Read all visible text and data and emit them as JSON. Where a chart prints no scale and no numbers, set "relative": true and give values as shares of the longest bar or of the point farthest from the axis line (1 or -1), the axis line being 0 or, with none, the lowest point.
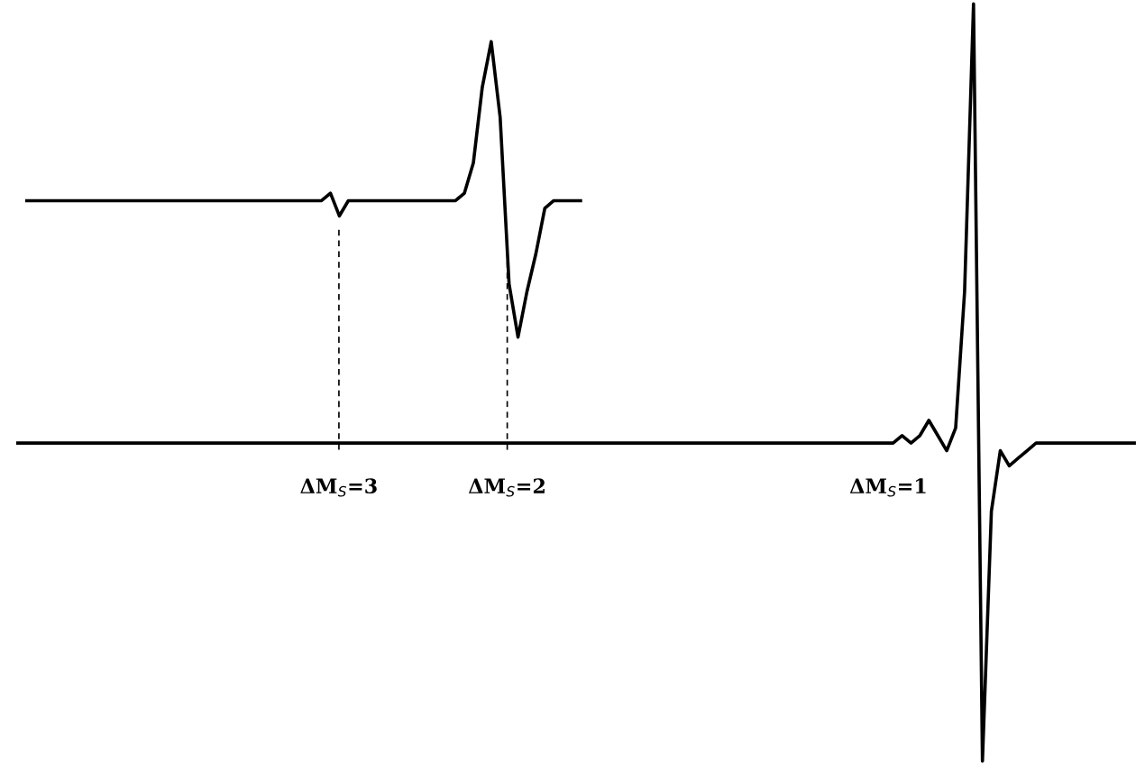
{
  "chart_data": {
    "type": "line",
    "relative": true,
    "line_style": "solid",
    "marker": "none",
    "legend": false,
    "categories": [
      null,
      null,
      null,
      null,
      null,
      null,
      null,
      null,
      null,
      null,
      null,
      null,
      null,
      null,
      null,
      null,
      null,
      null,
      null,
      null,
      null,
      null,
      null,
      null,
      null,
      null,
      null,
      null,
      null,
      null,
      null,
      null,
      null,
      null,
      null,
      null,
      null,
      null,
      null,
      null,
      null,
      null,
      null,
      null,
      null,
      null,
      null,
      null,
      null,
      null,
      null,
      null,
      null,
      null,
      null,
      null,
      null,
      null,
      null,
      null,
      null,
      null,
      null,
      null,
      null,
      null,
      null,
      null,
      null,
      null,
      null,
      null,
      null,
      null,
      null,
      null,
      null,
      null,
      null,
      null,
      null,
      null,
      null,
      null,
      null,
      null,
      null,
      null,
      null,
      null,
      null,
      null,
      null,
      null,
      null,
      null,
      null,
      null,
      null,
      null,
      null,
      null,
      null,
      null,
      null,
      null,
      null,
      null,
      null,
      null,
      null,
      null,
      null,
      null,
      null,
      null,
      null,
      null,
      null,
      null,
      null,
      null,
      null,
      null,
      null,
      null
    ],
    "series": [
      {
        "color": "#000000",
        "values": [
          null,
          0.74,
          0.74,
          0.74,
          0.74,
          0.74,
          0.74,
          0.74,
          0.74,
          0.74,
          0.74,
          0.74,
          0.74,
          0.74,
          0.74,
          0.74,
          0.74,
          0.74,
          0.74,
          0.74,
          0.74,
          0.74,
          0.74,
          0.74,
          0.74,
          0.74,
          0.74,
          0.74,
          0.74,
          0.74,
          0.74,
          0.74,
          0.74,
          0.74,
          0.74,
          0.75,
          0.72,
          0.74,
          0.74,
          0.74,
          0.74,
          0.74,
          0.74,
          0.74,
          0.74,
          0.74,
          0.74,
          0.74,
          0.74,
          0.74,
          0.75,
          0.79,
          0.89,
          0.95,
          0.85,
          0.63,
          0.56,
          0.62,
          0.67,
          0.73,
          0.74,
          0.74,
          0.74,
          0.74,
          null,
          null,
          null,
          null,
          null,
          null,
          null,
          null,
          null,
          null,
          null,
          null,
          null,
          null,
          null,
          null,
          null,
          null,
          null,
          null,
          null,
          null,
          null,
          null,
          null,
          null,
          null,
          null,
          null,
          null,
          null,
          null,
          null,
          null,
          null,
          null,
          null,
          null,
          null,
          null,
          null,
          null,
          null,
          null,
          null,
          null,
          null,
          null,
          null,
          null,
          null,
          null,
          null,
          null,
          null,
          null,
          null,
          null,
          null,
          null,
          null,
          null
        ]
      },
      {
        "color": "#000000",
        "values": [
          0.42,
          0.42,
          0.42,
          0.42,
          0.42,
          0.42,
          0.42,
          0.42,
          0.42,
          0.42,
          0.42,
          0.42,
          0.42,
          0.42,
          0.42,
          0.42,
          0.42,
          0.42,
          0.42,
          0.42,
          0.42,
          0.42,
          0.42,
          0.42,
          0.42,
          0.42,
          0.42,
          0.42,
          0.42,
          0.42,
          0.42,
          0.42,
          0.42,
          0.42,
          0.42,
          0.42,
          0.42,
          0.42,
          0.42,
          0.42,
          0.42,
          0.42,
          0.42,
          0.42,
          0.42,
          0.42,
          0.42,
          0.42,
          0.42,
          0.42,
          0.42,
          0.42,
          0.42,
          0.42,
          0.42,
          0.42,
          0.42,
          0.42,
          0.42,
          0.42,
          0.42,
          0.42,
          0.42,
          0.42,
          0.42,
          0.42,
          0.42,
          0.42,
          0.42,
          0.42,
          0.42,
          0.42,
          0.42,
          0.42,
          0.42,
          0.42,
          0.42,
          0.42,
          0.42,
          0.42,
          0.42,
          0.42,
          0.42,
          0.42,
          0.42,
          0.42,
          0.42,
          0.42,
          0.42,
          0.42,
          0.42,
          0.42,
          0.42,
          0.42,
          0.42,
          0.42,
          0.42,
          0.42,
          0.42,
          0.43,
          0.42,
          0.43,
          0.45,
          0.43,
          0.41,
          0.44,
          0.62,
          1.0,
          0.0,
          0.33,
          0.41,
          0.39,
          0.4,
          0.41,
          0.42,
          0.42,
          0.42,
          0.42,
          0.42,
          0.42,
          0.42,
          0.42,
          0.42,
          0.42,
          0.42,
          0.42
        ]
      }
    ],
    "annotations": [
      "ΔM$_{S}$=3",
      "ΔM$_{S}$=2",
      "ΔM$_{S}$=1"
    ]
  }
}
